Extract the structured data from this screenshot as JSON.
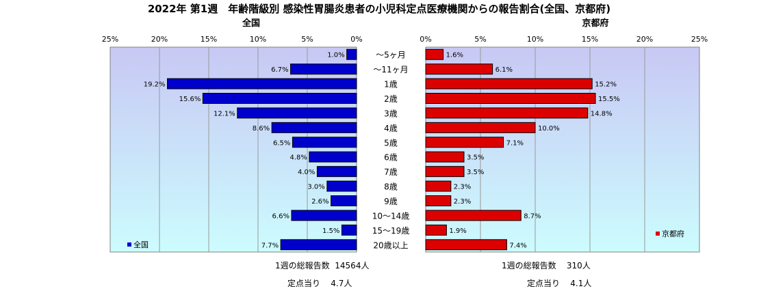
{
  "title": "2022年 第1週　年齢階級別 感染性胃腸炎患者の小児科定点医療機関からの報告割合(全国、京都府)",
  "colors": {
    "national": "#0000cc",
    "kyoto": "#dd0000",
    "plot_bg_top": "#c8c8f4",
    "plot_bg_bottom": "#ccfcfe",
    "grid": "#999999"
  },
  "chart_data": [
    {
      "type": "bar",
      "orientation": "horizontal",
      "direction": "leftward",
      "title": "全国",
      "categories": [
        "～5ヶ月",
        "～11ヶ月",
        "1歳",
        "2歳",
        "3歳",
        "4歳",
        "5歳",
        "6歳",
        "7歳",
        "8歳",
        "9歳",
        "10～14歳",
        "15～19歳",
        "20歳以上"
      ],
      "series": [
        {
          "name": "全国",
          "values": [
            1.0,
            6.7,
            19.2,
            15.6,
            12.1,
            8.6,
            6.5,
            4.8,
            4.0,
            3.0,
            2.6,
            6.6,
            1.5,
            7.7
          ]
        }
      ],
      "value_labels": [
        "1.0%",
        "6.7%",
        "19.2%",
        "15.6%",
        "12.1%",
        "8.6%",
        "6.5%",
        "4.8%",
        "4.0%",
        "3.0%",
        "2.6%",
        "6.6%",
        "1.5%",
        "7.7%"
      ],
      "xlim": [
        0,
        25
      ],
      "ticks": [
        "25%",
        "20%",
        "15%",
        "10%",
        "5%",
        "0%"
      ],
      "grid": true,
      "legend": "bottom-left"
    },
    {
      "type": "bar",
      "orientation": "horizontal",
      "direction": "rightward",
      "title": "京都府",
      "categories": [
        "～5ヶ月",
        "～11ヶ月",
        "1歳",
        "2歳",
        "3歳",
        "4歳",
        "5歳",
        "6歳",
        "7歳",
        "8歳",
        "9歳",
        "10～14歳",
        "15～19歳",
        "20歳以上"
      ],
      "series": [
        {
          "name": "京都府",
          "values": [
            1.6,
            6.1,
            15.2,
            15.5,
            14.8,
            10.0,
            7.1,
            3.5,
            3.5,
            2.3,
            2.3,
            8.7,
            1.9,
            7.4
          ]
        }
      ],
      "value_labels": [
        "1.6%",
        "6.1%",
        "15.2%",
        "15.5%",
        "14.8%",
        "10.0%",
        "7.1%",
        "3.5%",
        "3.5%",
        "2.3%",
        "2.3%",
        "8.7%",
        "1.9%",
        "7.4%"
      ],
      "xlim": [
        0,
        25
      ],
      "ticks": [
        "0%",
        "5%",
        "10%",
        "15%",
        "20%",
        "25%"
      ],
      "grid": true,
      "legend": "bottom-right"
    }
  ],
  "footer": {
    "national_total_label": "1週の総報告数",
    "national_total_value": "14564人",
    "national_per_label": "定点当り",
    "national_per_value": "4.7人",
    "kyoto_total_label": "1週の総報告数",
    "kyoto_total_value": "310人",
    "kyoto_per_label": "定点当り",
    "kyoto_per_value": "4.1人"
  }
}
